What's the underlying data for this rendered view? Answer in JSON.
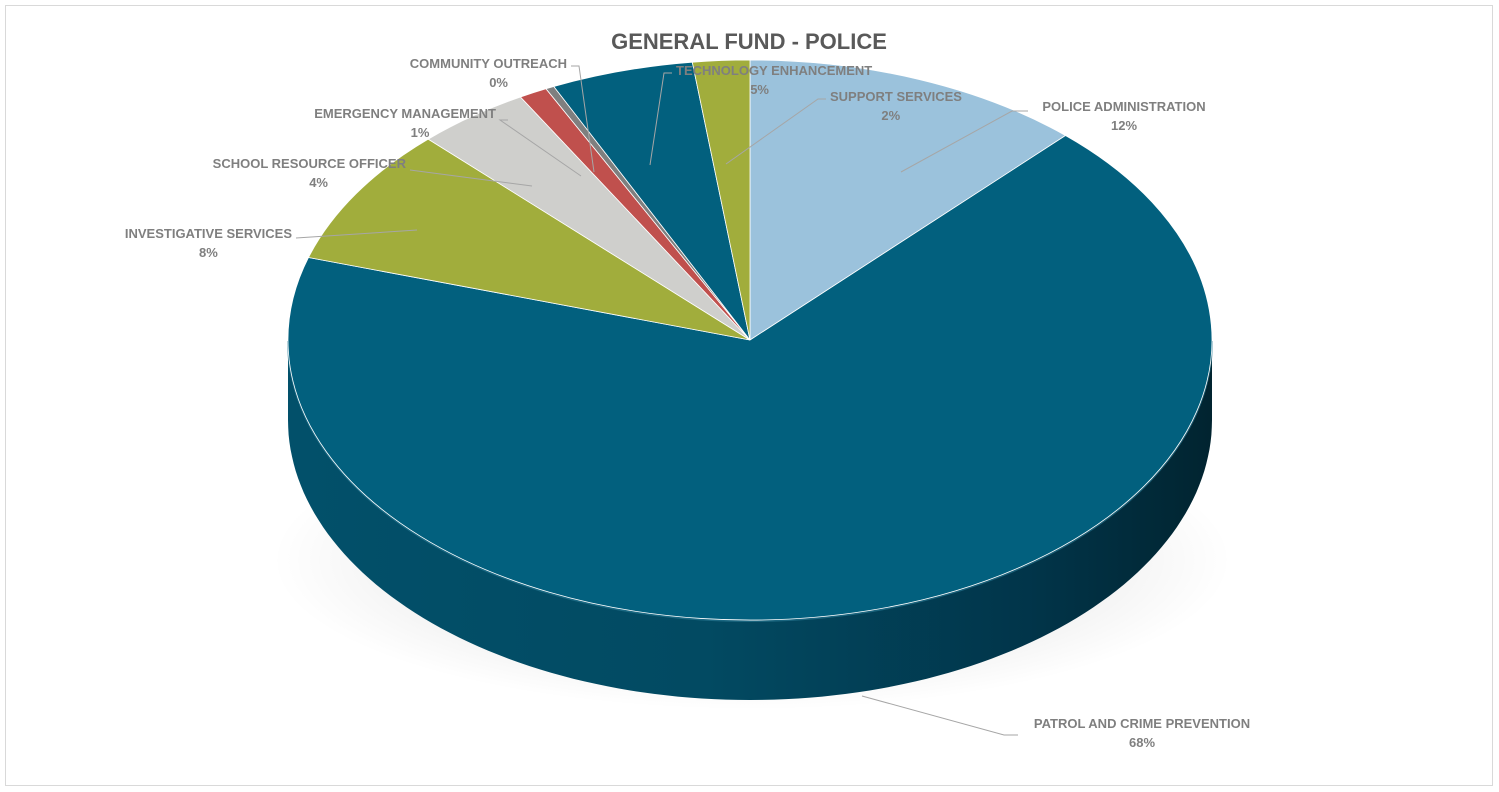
{
  "chart_data": {
    "type": "pie",
    "title": "GENERAL FUND - POLICE",
    "slices": [
      {
        "name": "POLICE ADMINISTRATION",
        "value": 12,
        "label": "12%",
        "color": "#9bc2dc"
      },
      {
        "name": "PATROL AND CRIME PREVENTION",
        "value": 68,
        "label": "68%",
        "color": "#02607e"
      },
      {
        "name": "INVESTIGATIVE SERVICES",
        "value": 8,
        "label": "8%",
        "color": "#a1ad3c"
      },
      {
        "name": "SCHOOL RESOURCE OFFICER",
        "value": 4,
        "label": "4%",
        "color": "#cfcfcc"
      },
      {
        "name": "EMERGENCY MANAGEMENT",
        "value": 1,
        "label": "1%",
        "color": "#c0504d"
      },
      {
        "name": "COMMUNITY OUTREACH",
        "value": 0.3,
        "label": "0%",
        "color": "#7f7f7f"
      },
      {
        "name": "TECHNOLOGY ENHANCEMENT",
        "value": 5,
        "label": "5%",
        "color": "#02607e"
      },
      {
        "name": "SUPPORT SERVICES",
        "value": 2,
        "label": "2%",
        "color": "#a1ad3c"
      }
    ],
    "style": "3d",
    "legend": "none"
  }
}
